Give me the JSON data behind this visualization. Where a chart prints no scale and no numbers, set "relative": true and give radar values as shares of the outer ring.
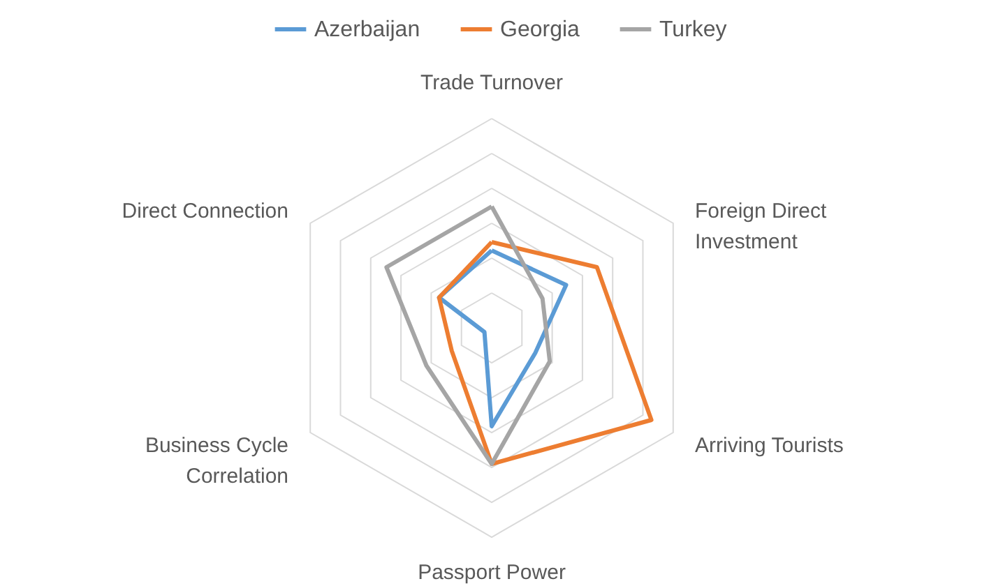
{
  "chart_data": {
    "type": "radar",
    "relative": true,
    "grid": true,
    "legend": "top",
    "line_style": "solid",
    "marker": "none",
    "categories": [
      "Trade Turnover",
      "Foreign Direct Investment",
      "Arriving Tourists",
      "Passport Power",
      "Business Cycle Correlation",
      "Direct Connection"
    ],
    "series": [
      {
        "name": "Azerbaijan",
        "color": "#5b9bd5",
        "values": [
          0.37,
          0.41,
          0.24,
          0.47,
          0.04,
          0.29
        ]
      },
      {
        "name": "Georgia",
        "color": "#ed7d31",
        "values": [
          0.41,
          0.58,
          0.88,
          0.65,
          0.22,
          0.29
        ]
      },
      {
        "name": "Turkey",
        "color": "#a5a5a5",
        "values": [
          0.58,
          0.28,
          0.32,
          0.65,
          0.36,
          0.58
        ]
      }
    ]
  }
}
